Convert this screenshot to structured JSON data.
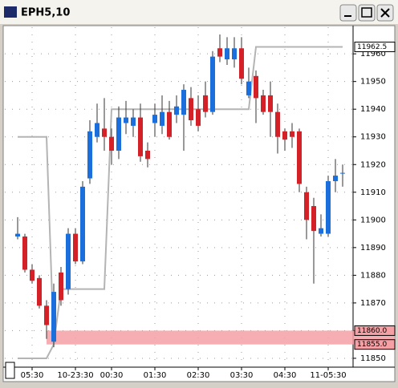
{
  "window": {
    "title": "EPH5,10"
  },
  "chart_data": {
    "type": "candlestick",
    "categories": [
      null,
      null,
      "05:30",
      null,
      null,
      null,
      null,
      null,
      "10-23:30",
      null,
      null,
      null,
      null,
      "00:30",
      null,
      null,
      null,
      null,
      null,
      "01:30",
      null,
      null,
      null,
      null,
      null,
      "02:30",
      null,
      null,
      null,
      null,
      null,
      "03:30",
      null,
      null,
      null,
      null,
      null,
      "04:30",
      null,
      null,
      null,
      null,
      null,
      "11-05:30",
      null,
      null
    ],
    "open": [
      11894,
      11894,
      11882,
      11879,
      11869,
      11856,
      11881,
      11875,
      11895,
      11885,
      11915,
      11930,
      11933,
      11930,
      11925,
      11935,
      11934,
      11937,
      11925,
      11935,
      11934,
      11939,
      11938,
      11938,
      11944,
      11940,
      11945,
      11939,
      11962,
      11958,
      11958,
      11962,
      11945,
      11952,
      11945,
      11945,
      11939,
      11932,
      11932,
      11932,
      11910,
      11905,
      11895,
      11895,
      11914,
      11917
    ],
    "high": [
      11901,
      11895,
      11884,
      11880,
      11871,
      11877,
      11883,
      11897,
      11897,
      11914,
      11936,
      11942,
      11944,
      11933,
      11941,
      11943,
      11940,
      11942,
      11928,
      11942,
      11945,
      11943,
      11945,
      11949,
      11948,
      11945,
      11950,
      11961,
      11967,
      11966,
      11966,
      11966,
      11955,
      11954,
      11947,
      11950,
      11942,
      11933,
      11935,
      11933,
      11912,
      11908,
      11902,
      11916,
      11922,
      11920
    ],
    "low": [
      11893,
      11881,
      11877,
      11868,
      11857,
      11854,
      11869,
      11873,
      11884,
      11884,
      11913,
      11928,
      11925,
      11920,
      11922,
      11931,
      11930,
      11921,
      11919,
      11930,
      11931,
      11929,
      11935,
      11925,
      11934,
      11932,
      11937,
      11938,
      11957,
      11956,
      11955,
      11949,
      11944,
      11935,
      11938,
      11930,
      11924,
      11925,
      11926,
      11910,
      11893,
      11877,
      11894,
      11894,
      11910,
      11912
    ],
    "close": [
      11895,
      11882,
      11878,
      11869,
      11862,
      11874,
      11871,
      11895,
      11885,
      11912,
      11932,
      11935,
      11930,
      11925,
      11937,
      11937,
      11937,
      11923,
      11922,
      11938,
      11939,
      11930,
      11941,
      11947,
      11936,
      11934,
      11939,
      11959,
      11959,
      11962,
      11962,
      11951,
      11950,
      11944,
      11939,
      11939,
      11930,
      11929,
      11930,
      11913,
      11900,
      11896,
      11897,
      11914,
      11916,
      11917
    ],
    "up_color": "#1a6fdc",
    "down_color": "#d42027",
    "overlays": [
      {
        "color": "#b4b4b4",
        "values": [
          11930,
          11930,
          11930,
          11930,
          11930,
          11855,
          11875,
          11875,
          11875,
          11875,
          11875,
          11875,
          11875,
          11940,
          11940,
          11940,
          11940,
          11940,
          11940,
          11940,
          11940,
          11940,
          11940,
          11940,
          11940,
          11940,
          11940,
          11940,
          11940,
          11940,
          11940,
          11940,
          11940,
          11962.5,
          11962.5,
          11962.5,
          11962.5,
          11962.5,
          11962.5,
          11962.5,
          11962.5,
          11962.5,
          11962.5,
          11962.5,
          11962.5,
          11962.5
        ]
      },
      {
        "color": "#b4b4b4",
        "values": [
          11850,
          11850,
          11850,
          11850,
          11850,
          11855,
          null,
          null,
          null,
          null,
          null,
          null,
          null,
          null,
          null,
          null,
          null,
          null,
          null,
          null,
          null,
          null,
          null,
          null,
          null,
          null,
          null,
          null,
          null,
          null,
          null,
          null,
          null,
          null,
          null,
          null,
          null,
          null,
          null,
          null,
          null,
          null,
          null,
          null,
          null,
          null
        ]
      }
    ],
    "price_labels": [
      {
        "value": 11962.5,
        "label": "11962.5"
      },
      {
        "value": 11860,
        "label": "11860.0"
      },
      {
        "value": 11855,
        "label": "11855.0"
      }
    ],
    "band_color": "#f4a0a4",
    "ylim": [
      11846.8,
      11969.6
    ],
    "yticks": [
      11850,
      11860,
      11870,
      11880,
      11890,
      11900,
      11910,
      11920,
      11930,
      11940,
      11950,
      11960
    ],
    "grid": true
  }
}
